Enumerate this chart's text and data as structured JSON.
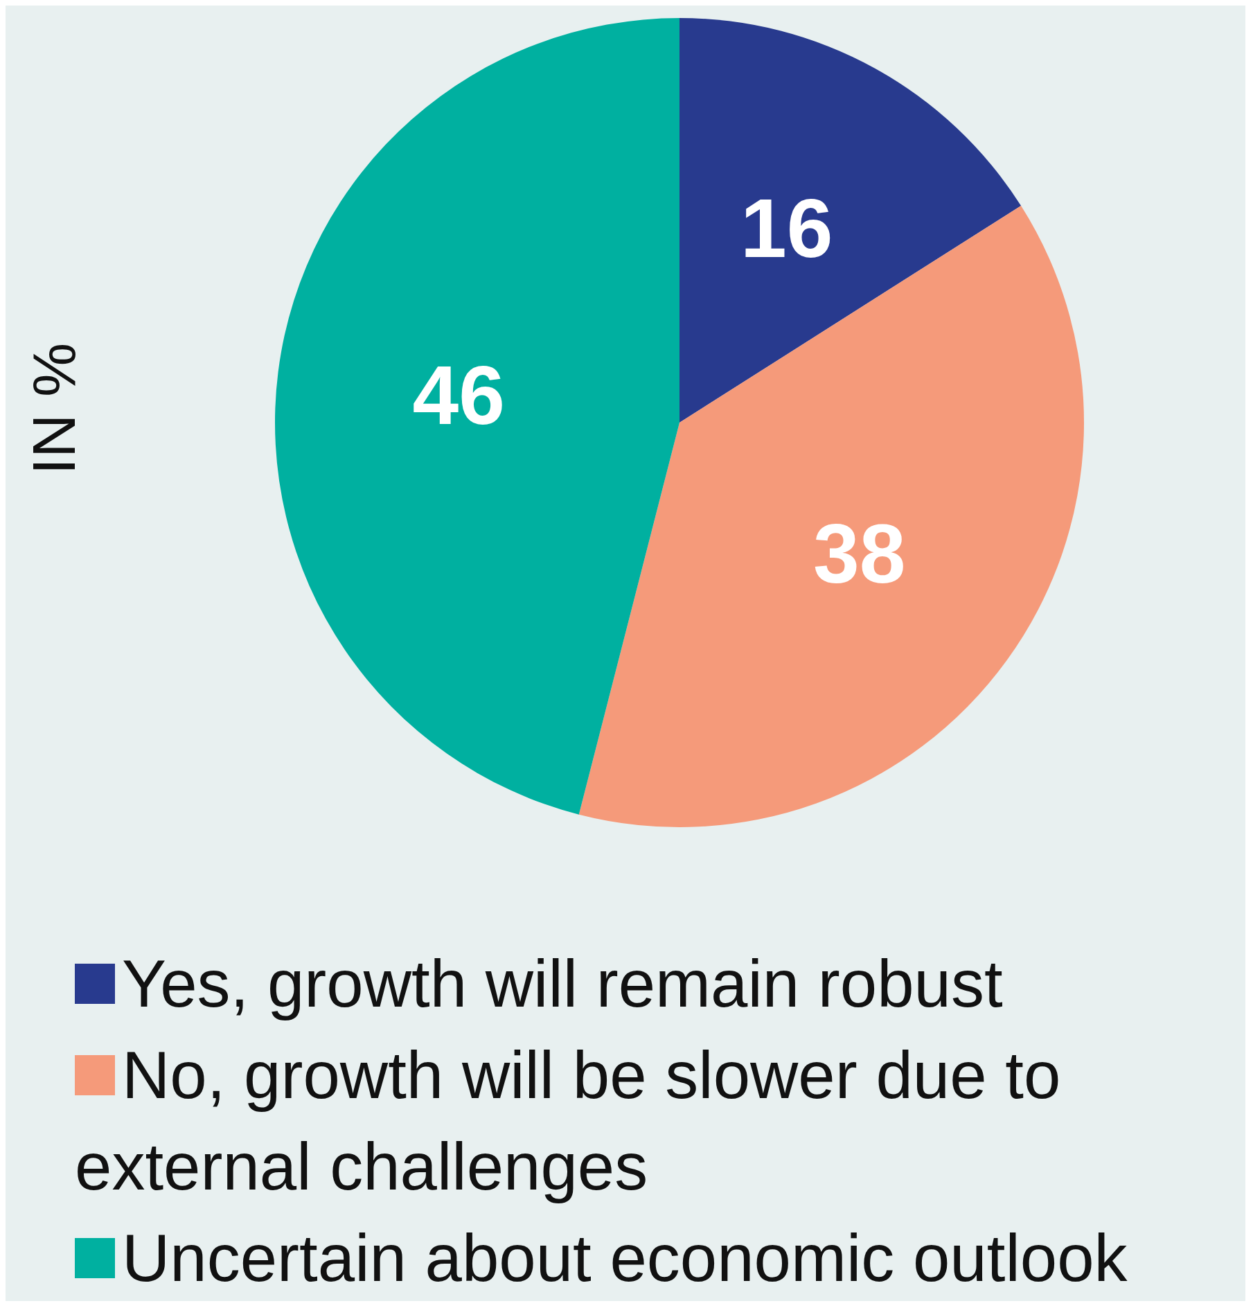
{
  "chart_data": {
    "type": "pie",
    "ylabel": "IN %",
    "categories": [
      "Yes, growth will remain robust",
      "No, growth will be slower due to external challenges",
      "Uncertain about economic outlook"
    ],
    "values": [
      16,
      38,
      46
    ],
    "colors": [
      "#283a8e",
      "#f59a7a",
      "#00b0a0"
    ],
    "data_labels": true,
    "legend": "bottom"
  }
}
